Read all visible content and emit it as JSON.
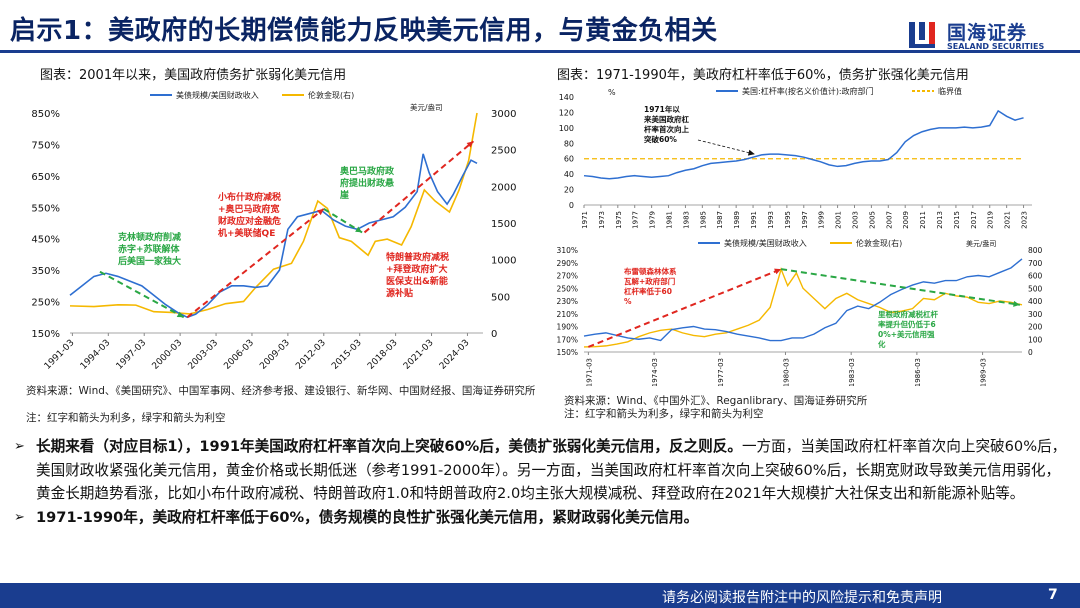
{
  "header": {
    "title": "启示1：美政府的长期偿债能力反映美元信用，与黄金负相关",
    "logo_cn": "国海证券",
    "logo_en": "SEALAND SECURITIES"
  },
  "left_panel": {
    "caption": "图表：2001年以来，美国政府债务扩张弱化美元信用",
    "source": "资料来源：Wind、《美国研究》、中国军事网、经济参考报、建设银行、新华网、中国财经报、国海证券研究所",
    "note": "注：红字和箭头为利多，绿字和箭头为利空"
  },
  "right_top_panel": {
    "caption": "图表：1971-1990年，美政府杠杆率低于60%，债务扩张强化美元信用"
  },
  "right_panel": {
    "source": "资料来源：Wind、《中国外汇》、Reganlibrary、国海证券研究所",
    "note": "注：红字和箭头为利多，绿字和箭头为利空"
  },
  "chart_data": [
    {
      "type": "line",
      "legend": [
        "美债规模/美国财政收入",
        "伦敦金现(右)"
      ],
      "legend_placement": "top",
      "right_unit": "美元/盎司",
      "left_ticks": [
        "150%",
        "250%",
        "350%",
        "450%",
        "550%",
        "650%",
        "750%",
        "850%"
      ],
      "right_ticks": [
        "0",
        "500",
        "1000",
        "1500",
        "2000",
        "2500",
        "3000"
      ],
      "x_ticks": [
        "1991-03",
        "1994-03",
        "1997-03",
        "2000-03",
        "2003-03",
        "2006-03",
        "2009-03",
        "2012-03",
        "2015-03",
        "2018-03",
        "2021-03",
        "2024-03"
      ],
      "ylim_left": [
        150,
        850
      ],
      "ylim_right": [
        0,
        3000
      ],
      "x_range": [
        1991.0,
        2025.5
      ],
      "colors": {
        "debt": "#2e6fd1",
        "gold": "#f5b800",
        "red": "#e0261f",
        "green": "#2aa745"
      },
      "series": [
        {
          "name": "美债规模/美国财政收入",
          "axis": "left",
          "x": [
            1991.0,
            1992.0,
            1993.0,
            1994.0,
            1995.0,
            1996.0,
            1997.0,
            1998.0,
            1999.0,
            2000.0,
            2000.8,
            2001.5,
            2002.5,
            2003.5,
            2004.5,
            2005.5,
            2006.5,
            2007.5,
            2008.5,
            2009.2,
            2010.0,
            2011.0,
            2012.0,
            2013.0,
            2014.0,
            2015.0,
            2016.0,
            2017.0,
            2018.0,
            2019.0,
            2020.0,
            2020.5,
            2021.0,
            2021.7,
            2022.5,
            2023.0,
            2023.8,
            2024.5,
            2025.0
          ],
          "values": [
            270,
            300,
            330,
            340,
            330,
            315,
            300,
            270,
            240,
            215,
            200,
            210,
            240,
            280,
            300,
            300,
            295,
            300,
            350,
            480,
            520,
            530,
            540,
            510,
            490,
            480,
            500,
            510,
            520,
            550,
            600,
            720,
            660,
            600,
            560,
            590,
            650,
            700,
            690
          ]
        },
        {
          "name": "伦敦金现(右)",
          "axis": "right",
          "x": [
            1991.0,
            1993.0,
            1995.0,
            1996.5,
            1998.0,
            1999.5,
            2001.0,
            2002.5,
            2004.0,
            2005.5,
            2006.5,
            2008.0,
            2009.5,
            2010.5,
            2011.7,
            2012.5,
            2013.5,
            2014.5,
            2015.9,
            2016.5,
            2017.5,
            2018.7,
            2019.5,
            2020.6,
            2021.5,
            2022.7,
            2023.5,
            2024.3,
            2025.0
          ],
          "values": [
            370,
            360,
            385,
            380,
            290,
            280,
            260,
            320,
            400,
            430,
            620,
            870,
            950,
            1250,
            1800,
            1700,
            1300,
            1250,
            1060,
            1250,
            1280,
            1200,
            1450,
            1950,
            1800,
            1650,
            1950,
            2350,
            3000
          ]
        }
      ],
      "annotations": [
        {
          "text": "克林顿政府削减赤字+苏联解体后美国一家独大",
          "color": "green"
        },
        {
          "text": "小布什政府减税+奥巴马政府宽财政应对金融危机+美联储QE",
          "color": "red"
        },
        {
          "text": "奥巴马政府政府提出财政悬崖",
          "color": "green"
        },
        {
          "text": "特朗普政府减税+拜登政府扩大医保支出&新能源补贴",
          "color": "red"
        }
      ]
    },
    {
      "type": "line",
      "legend": [
        "美国:杠杆率(按名义价值计):政府部门",
        "临界值"
      ],
      "legend_placement": "top",
      "left_unit": "%",
      "left_ticks": [
        "0",
        "20",
        "40",
        "60",
        "80",
        "100",
        "120",
        "140"
      ],
      "x_ticks": [
        "1971",
        "1973",
        "1975",
        "1977",
        "1979",
        "1981",
        "1983",
        "1985",
        "1987",
        "1989",
        "1991",
        "1993",
        "1995",
        "1997",
        "1999",
        "2001",
        "2003",
        "2005",
        "2007",
        "2009",
        "2011",
        "2013",
        "2015",
        "2017",
        "2019",
        "2021",
        "2023"
      ],
      "ylim": [
        0,
        140
      ],
      "x_range": [
        1971,
        2024
      ],
      "colors": {
        "leverage": "#2e6fd1",
        "threshold": "#f5b800"
      },
      "series": [
        {
          "name": "美国:杠杆率(按名义价值计):政府部门",
          "x": [
            1971,
            1972,
            1973,
            1974,
            1975,
            1976,
            1977,
            1978,
            1979,
            1980,
            1981,
            1982,
            1983,
            1984,
            1985,
            1986,
            1987,
            1988,
            1989,
            1990,
            1991,
            1992,
            1993,
            1994,
            1995,
            1996,
            1997,
            1998,
            1999,
            2000,
            2001,
            2002,
            2003,
            2004,
            2005,
            2006,
            2007,
            2008,
            2009,
            2010,
            2011,
            2012,
            2013,
            2014,
            2015,
            2016,
            2017,
            2018,
            2019,
            2020,
            2021,
            2022,
            2023
          ],
          "values": [
            38,
            37,
            35,
            34,
            35,
            37,
            38,
            37,
            36,
            37,
            38,
            42,
            45,
            47,
            51,
            54,
            55,
            56,
            57,
            59,
            62,
            65,
            66,
            66,
            65,
            64,
            62,
            59,
            56,
            52,
            50,
            51,
            54,
            56,
            57,
            57,
            59,
            68,
            82,
            90,
            95,
            98,
            100,
            100,
            100,
            101,
            100,
            101,
            103,
            122,
            115,
            110,
            113
          ]
        },
        {
          "name": "临界值",
          "x": [
            1971,
            2023
          ],
          "values": [
            60,
            60
          ]
        }
      ],
      "annotations": [
        {
          "text": "1971年以来美国政府杠杆率首次向上突破60%",
          "color": "black"
        }
      ]
    },
    {
      "type": "line",
      "legend": [
        "美债规模/美国财政收入",
        "伦敦金现(右)"
      ],
      "legend_placement": "top",
      "right_unit": "美元/盎司",
      "left_ticks": [
        "150%",
        "170%",
        "190%",
        "210%",
        "230%",
        "250%",
        "270%",
        "290%",
        "310%"
      ],
      "right_ticks": [
        "0",
        "100",
        "200",
        "300",
        "400",
        "500",
        "600",
        "700",
        "800"
      ],
      "x_ticks": [
        "1971-03",
        "1974-03",
        "1977-03",
        "1980-03",
        "1983-03",
        "1986-03",
        "1989-03"
      ],
      "ylim_left": [
        150,
        310
      ],
      "ylim_right": [
        0,
        800
      ],
      "x_range": [
        1971.0,
        1991.0
      ],
      "colors": {
        "debt": "#2e6fd1",
        "gold": "#f5b800",
        "red": "#e0261f",
        "green": "#2aa745"
      },
      "series": [
        {
          "name": "美债规模/美国财政收入",
          "axis": "left",
          "x": [
            1971.0,
            1971.5,
            1972.0,
            1972.5,
            1973.0,
            1973.5,
            1974.0,
            1974.5,
            1975.0,
            1975.5,
            1976.0,
            1976.5,
            1977.0,
            1977.5,
            1978.0,
            1978.5,
            1979.0,
            1979.5,
            1980.0,
            1980.5,
            1981.0,
            1981.5,
            1982.0,
            1982.5,
            1983.0,
            1983.5,
            1984.0,
            1984.5,
            1985.0,
            1985.5,
            1986.0,
            1986.5,
            1987.0,
            1987.5,
            1988.0,
            1988.5,
            1989.0,
            1989.5,
            1990.0,
            1990.5,
            1991.0
          ],
          "values": [
            175,
            178,
            180,
            176,
            172,
            170,
            172,
            168,
            185,
            188,
            190,
            186,
            185,
            182,
            178,
            175,
            172,
            168,
            168,
            172,
            172,
            178,
            188,
            195,
            215,
            222,
            218,
            228,
            240,
            248,
            255,
            260,
            258,
            262,
            262,
            268,
            270,
            268,
            275,
            282,
            296
          ]
        },
        {
          "name": "伦敦金现(右)",
          "axis": "right",
          "x": [
            1971.0,
            1971.5,
            1972.0,
            1972.5,
            1973.0,
            1973.5,
            1974.0,
            1974.5,
            1975.0,
            1975.5,
            1976.0,
            1976.5,
            1977.0,
            1977.5,
            1978.0,
            1978.5,
            1979.0,
            1979.5,
            1980.0,
            1980.3,
            1980.7,
            1981.0,
            1981.5,
            1982.0,
            1982.5,
            1983.0,
            1983.5,
            1984.0,
            1984.5,
            1985.0,
            1985.5,
            1986.0,
            1986.5,
            1987.0,
            1987.5,
            1988.0,
            1988.5,
            1989.0,
            1989.5,
            1990.0,
            1990.5,
            1991.0
          ],
          "values": [
            40,
            42,
            48,
            62,
            80,
            120,
            150,
            170,
            180,
            150,
            130,
            120,
            140,
            150,
            180,
            210,
            250,
            350,
            650,
            520,
            620,
            500,
            420,
            340,
            420,
            460,
            410,
            380,
            350,
            310,
            320,
            340,
            420,
            410,
            460,
            440,
            430,
            390,
            380,
            400,
            390,
            370
          ]
        }
      ],
      "annotations": [
        {
          "text": "布雷顿森林体系瓦解+政府部门杠杆率低于60%",
          "color": "red"
        },
        {
          "text": "里根政府减税杠杆率提升但仍低于60%+美元信用强化",
          "color": "green"
        }
      ]
    }
  ],
  "bullets": [
    {
      "bold": "长期来看（对应目标1），1991年美国政府杠杆率首次向上突破60%后，美债扩张弱化美元信用，反之则反。",
      "normal": "一方面，当美国政府杠杆率首次向上突破60%后，美国财政收紧强化美元信用，黄金价格或长期低迷（参考1991-2000年）。另一方面，当美国政府杠杆率首次向上突破60%后，长期宽财政导致美元信用弱化，黄金长期趋势看涨，比如小布什政府减税、特朗普政府1.0和特朗普政府2.0均主张大规模减税、拜登政府在2021年大规模扩大社保支出和新能源补贴等。"
    },
    {
      "bold": "1971-1990年，美政府杠杆率低于60%，债务规模的良性扩张强化美元信用，紧财政弱化美元信用。",
      "normal": ""
    }
  ],
  "footer": {
    "disclaimer": "请务必阅读报告附注中的风险提示和免责声明",
    "page": "7"
  }
}
